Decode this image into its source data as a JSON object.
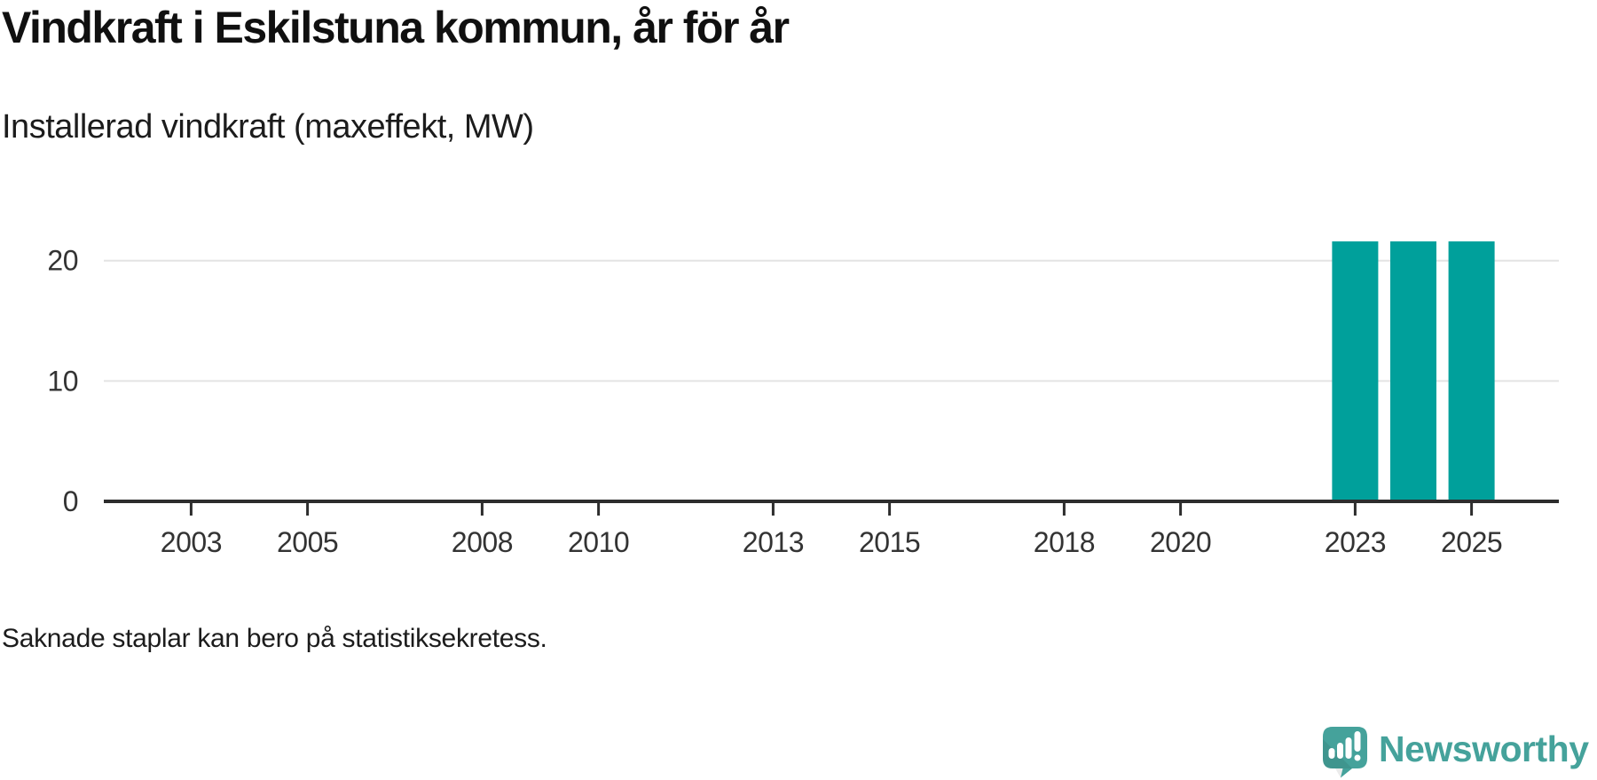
{
  "title": "Vindkraft i Eskilstuna kommun, år för år",
  "subtitle": "Installerad vindkraft (maxeffekt, MW)",
  "footnote": "Saknade staplar kan bero på statistiksekretess.",
  "branding": {
    "name": "Newsworthy",
    "icon": "newsworthy-speech-bubble-bar-chart-icon",
    "color": "#45a29b"
  },
  "colors": {
    "bar": "#00a09b",
    "axis_line": "#2d2d2d",
    "grid_line": "#e4e4e4",
    "tick_label": "#333333",
    "text": "#1c1c1c",
    "background": "#ffffff"
  },
  "chart_data": {
    "type": "bar",
    "title": "Vindkraft i Eskilstuna kommun, år för år",
    "subtitle": "Installerad vindkraft (maxeffekt, MW)",
    "unit": "MW",
    "x": [
      2023,
      2024,
      2025
    ],
    "values": [
      21.6,
      21.6,
      21.6
    ],
    "x_domain": [
      2002,
      2026
    ],
    "x_ticks": [
      2003,
      2005,
      2008,
      2010,
      2013,
      2015,
      2018,
      2020,
      2023,
      2025
    ],
    "y_ticks": [
      0,
      10,
      20
    ],
    "ylim": [
      0,
      24.7
    ],
    "grid": "horizontal",
    "legend": "none",
    "bar_color": "#00a09b",
    "annotations": []
  }
}
